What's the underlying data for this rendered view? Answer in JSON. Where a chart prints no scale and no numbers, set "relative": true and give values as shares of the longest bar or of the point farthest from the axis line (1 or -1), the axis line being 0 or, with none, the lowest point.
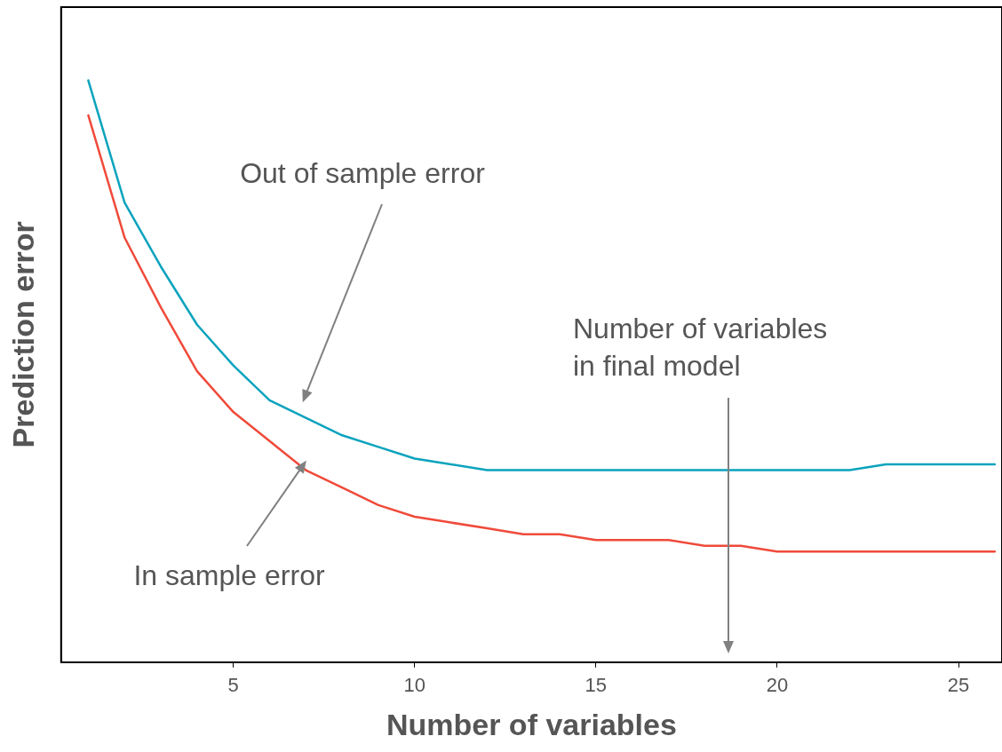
{
  "chart_data": {
    "type": "line",
    "relative": true,
    "xlabel": "Number of variables",
    "ylabel": "Prediction error",
    "x": [
      1,
      2,
      3,
      4,
      5,
      6,
      7,
      8,
      9,
      10,
      11,
      12,
      13,
      14,
      15,
      16,
      17,
      18,
      19,
      20,
      21,
      22,
      23,
      24,
      25,
      26
    ],
    "xlim": [
      0.25,
      26.2
    ],
    "xticks": [
      5,
      10,
      15,
      20,
      25
    ],
    "grid": false,
    "legend": false,
    "marker": "none",
    "line_style": "solid",
    "series": [
      {
        "color": "#0aa3bd",
        "values": [
          1.0,
          0.79,
          0.68,
          0.58,
          0.51,
          0.45,
          0.42,
          0.39,
          0.37,
          0.35,
          0.34,
          0.33,
          0.33,
          0.33,
          0.33,
          0.33,
          0.33,
          0.33,
          0.33,
          0.33,
          0.33,
          0.33,
          0.34,
          0.34,
          0.34,
          0.34
        ]
      },
      {
        "color": "#f04a3a",
        "values": [
          0.94,
          0.73,
          0.61,
          0.5,
          0.43,
          0.38,
          0.33,
          0.3,
          0.27,
          0.25,
          0.24,
          0.23,
          0.22,
          0.22,
          0.21,
          0.21,
          0.21,
          0.2,
          0.2,
          0.19,
          0.19,
          0.19,
          0.19,
          0.19,
          0.19,
          0.19
        ]
      }
    ],
    "annotations": [
      "Out of sample error",
      "In sample error",
      "Number of variables\nin final model"
    ]
  }
}
